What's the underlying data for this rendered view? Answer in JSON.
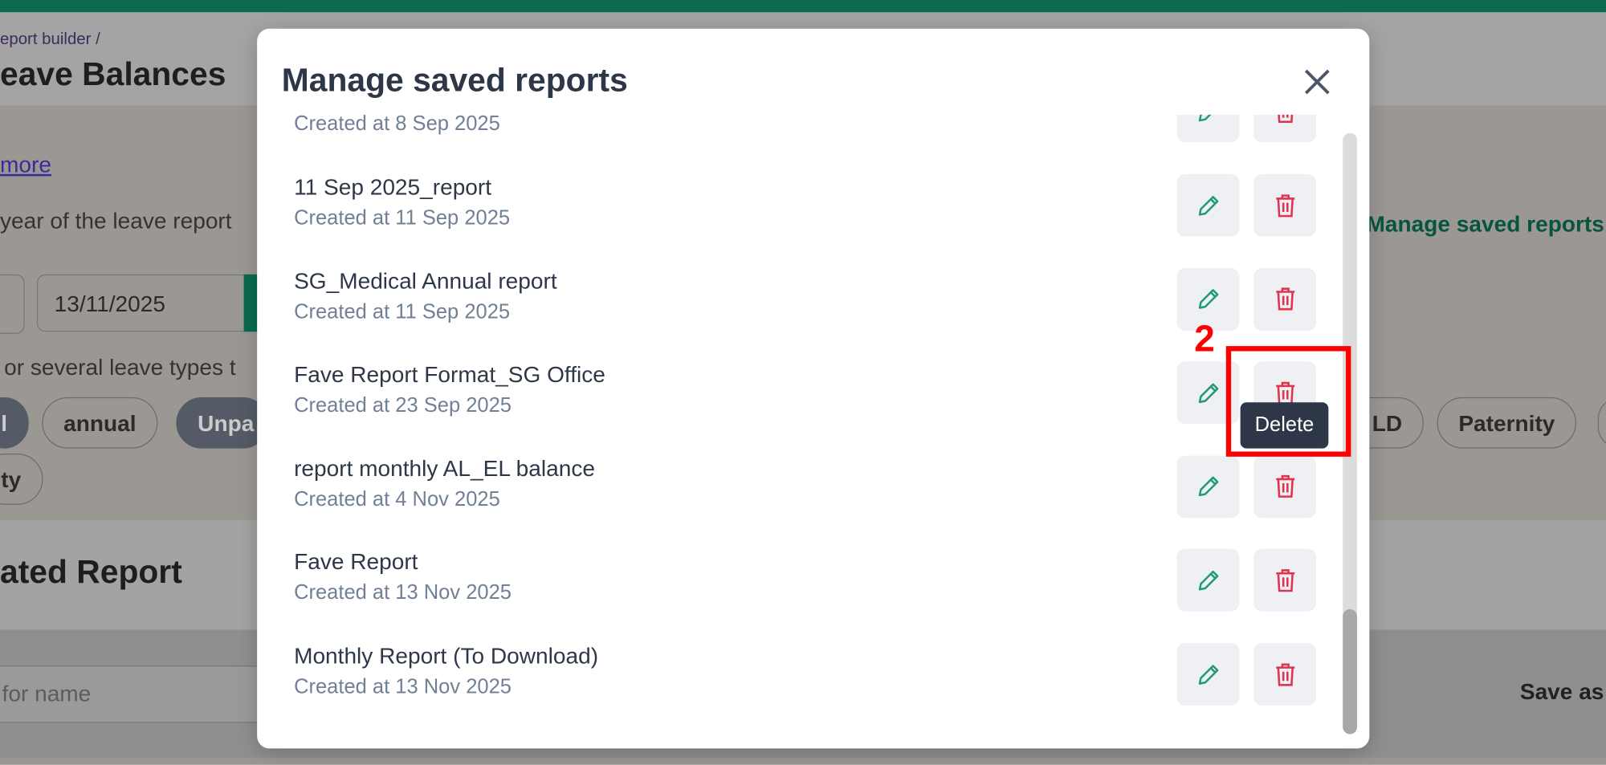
{
  "background": {
    "breadcrumb": "eport builder",
    "breadcrumb_sep": "/",
    "title": "eave Balances",
    "link": "more",
    "year_hint": "year of the leave report",
    "date": "13/11/2025",
    "types_hint": "or several leave types t",
    "chips": [
      "l",
      "annual",
      "Unpa",
      "LD",
      "Paternity",
      "ty"
    ],
    "section_title": "ated Report",
    "search_placeholder": "for name",
    "save_as": "Save as",
    "manage_link": "Manage saved reports"
  },
  "modal": {
    "title": "Manage saved reports",
    "reports": [
      {
        "name": "",
        "created": "Created at 8 Sep 2025"
      },
      {
        "name": "11 Sep 2025_report",
        "created": "Created at 11 Sep 2025"
      },
      {
        "name": "SG_Medical Annual report",
        "created": "Created at 11 Sep 2025"
      },
      {
        "name": "Fave Report Format_SG Office",
        "created": "Created at 23 Sep 2025"
      },
      {
        "name": "report monthly AL_EL balance",
        "created": "Created at 4 Nov 2025"
      },
      {
        "name": "Fave Report",
        "created": "Created at 13 Nov 2025"
      },
      {
        "name": "Monthly Report (To Download)",
        "created": "Created at 13 Nov 2025"
      }
    ],
    "tooltip": "Delete"
  },
  "annotation": {
    "label": "2"
  }
}
